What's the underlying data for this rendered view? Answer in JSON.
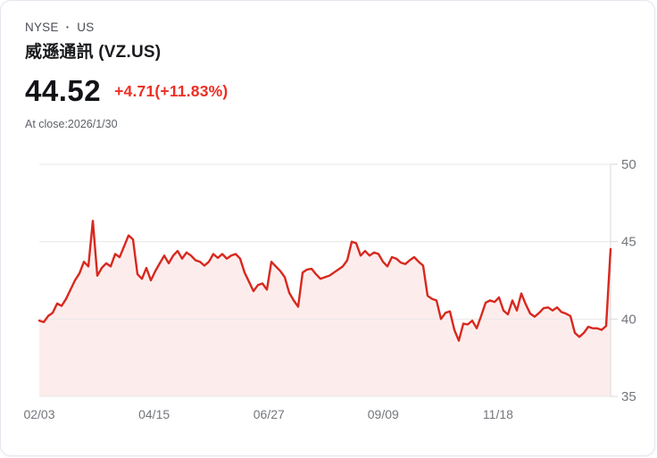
{
  "header": {
    "exchange": "NYSE",
    "separator": "·",
    "region": "US",
    "name": "威遜通訊 (VZ.US)",
    "price": "44.52",
    "change": "+4.71(+11.83%)",
    "as_of": "At close:2026/1/30"
  },
  "colors": {
    "line": "#d8281e",
    "area_fill": "#fcedec",
    "change_text": "#ed2e24",
    "grid": "#e7e7e7",
    "axis": "#d9d9d9",
    "tick_label": "#73767b"
  },
  "chart_data": {
    "type": "area",
    "title": "VZ.US 1-year price chart",
    "xlabel": "",
    "ylabel": "",
    "ylim": [
      35,
      50
    ],
    "y_ticks": [
      35,
      40,
      45,
      50
    ],
    "grid": true,
    "legend": "none",
    "x_ticks": [
      {
        "label": "02/03",
        "pos": 0.0
      },
      {
        "label": "04/15",
        "pos": 0.201
      },
      {
        "label": "06/27",
        "pos": 0.402
      },
      {
        "label": "09/09",
        "pos": 0.602
      },
      {
        "label": "11/18",
        "pos": 0.803
      }
    ],
    "values": [
      39.9,
      39.8,
      40.2,
      40.4,
      41.0,
      40.85,
      41.3,
      41.9,
      42.5,
      42.95,
      43.7,
      43.4,
      46.35,
      42.8,
      43.3,
      43.6,
      43.4,
      44.2,
      44.0,
      44.7,
      45.4,
      45.15,
      42.9,
      42.6,
      43.3,
      42.5,
      43.1,
      43.6,
      44.1,
      43.6,
      44.1,
      44.4,
      43.9,
      44.3,
      44.1,
      43.8,
      43.7,
      43.45,
      43.7,
      44.2,
      43.95,
      44.2,
      43.9,
      44.1,
      44.2,
      43.9,
      43.0,
      42.4,
      41.8,
      42.2,
      42.3,
      41.9,
      43.7,
      43.4,
      43.1,
      42.7,
      41.7,
      41.2,
      40.8,
      43.0,
      43.2,
      43.25,
      42.9,
      42.6,
      42.7,
      42.8,
      43.0,
      43.2,
      43.4,
      43.8,
      45.0,
      44.9,
      44.1,
      44.4,
      44.1,
      44.3,
      44.2,
      43.7,
      43.4,
      44.0,
      43.9,
      43.65,
      43.55,
      43.8,
      44.0,
      43.7,
      43.45,
      41.5,
      41.3,
      41.2,
      40.0,
      40.4,
      40.5,
      39.3,
      38.6,
      39.7,
      39.65,
      39.9,
      39.4,
      40.2,
      41.05,
      41.2,
      41.1,
      41.4,
      40.55,
      40.3,
      41.2,
      40.55,
      41.65,
      40.95,
      40.35,
      40.15,
      40.4,
      40.7,
      40.75,
      40.55,
      40.75,
      40.45,
      40.35,
      40.2,
      39.1,
      38.85,
      39.1,
      39.5,
      39.4,
      39.4,
      39.3,
      39.55,
      44.52
    ]
  }
}
